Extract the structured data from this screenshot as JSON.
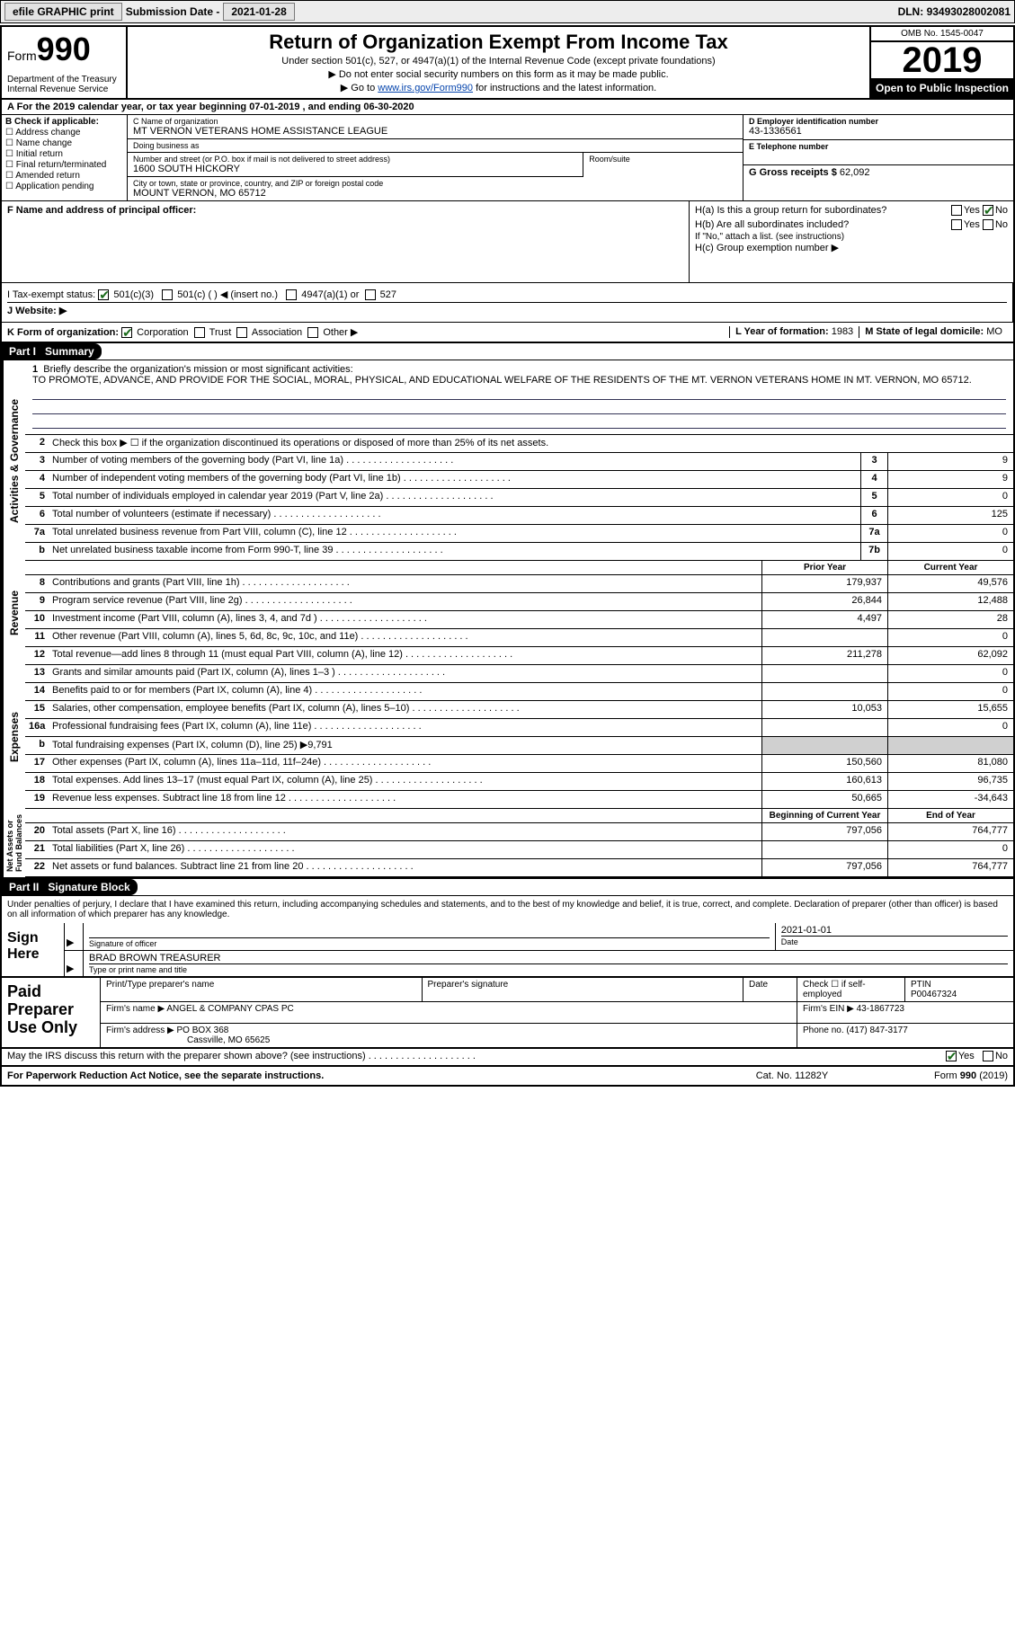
{
  "topbar": {
    "efile": "efile GRAPHIC print",
    "sub_label": "Submission Date - ",
    "sub_date": "2021-01-28",
    "dln_label": "DLN: ",
    "dln": "93493028002081"
  },
  "header": {
    "form_word": "Form",
    "form_num": "990",
    "dept": "Department of the Treasury\nInternal Revenue Service",
    "title": "Return of Organization Exempt From Income Tax",
    "sub1": "Under section 501(c), 527, or 4947(a)(1) of the Internal Revenue Code (except private foundations)",
    "sub2": "▶ Do not enter social security numbers on this form as it may be made public.",
    "sub3_pre": "▶ Go to ",
    "sub3_link": "www.irs.gov/Form990",
    "sub3_post": " for instructions and the latest information.",
    "omb": "OMB No. 1545-0047",
    "year": "2019",
    "open": "Open to Public Inspection"
  },
  "row_a": "A For the 2019 calendar year, or tax year beginning 07-01-2019   , and ending 06-30-2020",
  "box_b": {
    "label": "B Check if applicable:",
    "items": [
      "Address change",
      "Name change",
      "Initial return",
      "Final return/terminated",
      "Amended return",
      "Application pending"
    ]
  },
  "box_c": {
    "name_lbl": "C Name of organization",
    "name": "MT VERNON VETERANS HOME ASSISTANCE LEAGUE",
    "dba_lbl": "Doing business as",
    "dba": "",
    "addr_lbl": "Number and street (or P.O. box if mail is not delivered to street address)",
    "addr": "1600 SOUTH HICKORY",
    "suite_lbl": "Room/suite",
    "suite": "",
    "city_lbl": "City or town, state or province, country, and ZIP or foreign postal code",
    "city": "MOUNT VERNON, MO  65712"
  },
  "box_d": {
    "lbl": "D Employer identification number",
    "val": "43-1336561"
  },
  "box_e": {
    "lbl": "E Telephone number",
    "val": ""
  },
  "box_g": {
    "lbl": "G Gross receipts $ ",
    "val": "62,092"
  },
  "box_f": {
    "lbl": "F  Name and address of principal officer:",
    "val": ""
  },
  "box_h": {
    "a": "H(a)  Is this a group return for subordinates?",
    "a_yes": "Yes",
    "a_no": "No",
    "b": "H(b)  Are all subordinates included?",
    "b_yes": "Yes",
    "b_no": "No",
    "b_note": "If \"No,\" attach a list. (see instructions)",
    "c": "H(c)  Group exemption number ▶"
  },
  "row_i": {
    "lbl": "I  Tax-exempt status:",
    "o1": "501(c)(3)",
    "o2": "501(c) (  ) ◀ (insert no.)",
    "o3": "4947(a)(1) or",
    "o4": "527"
  },
  "row_j": {
    "lbl": "J  Website: ▶"
  },
  "row_k": {
    "lbl": "K Form of organization:",
    "o1": "Corporation",
    "o2": "Trust",
    "o3": "Association",
    "o4": "Other ▶",
    "l_lbl": "L Year of formation: ",
    "l_val": "1983",
    "m_lbl": "M State of legal domicile: ",
    "m_val": "MO"
  },
  "part1": "Part I",
  "part1_title": "Summary",
  "mission": {
    "num": "1",
    "lbl": "Briefly describe the organization's mission or most significant activities:",
    "text": "TO PROMOTE, ADVANCE, AND PROVIDE FOR THE SOCIAL, MORAL, PHYSICAL, AND EDUCATIONAL WELFARE OF THE RESIDENTS OF THE MT. VERNON VETERANS HOME IN MT. VERNON, MO 65712."
  },
  "side_labels": {
    "ag": "Activities & Governance",
    "rev": "Revenue",
    "exp": "Expenses",
    "na": "Net Assets or\nFund Balances"
  },
  "col_hdrs": {
    "py": "Prior Year",
    "cy": "Current Year",
    "bcy": "Beginning of Current Year",
    "eoy": "End of Year"
  },
  "lines_gov": [
    {
      "n": "2",
      "t": "Check this box ▶ ☐  if the organization discontinued its operations or disposed of more than 25% of its net assets."
    },
    {
      "n": "3",
      "t": "Number of voting members of the governing body (Part VI, line 1a)",
      "box": "3",
      "v": "9"
    },
    {
      "n": "4",
      "t": "Number of independent voting members of the governing body (Part VI, line 1b)",
      "box": "4",
      "v": "9"
    },
    {
      "n": "5",
      "t": "Total number of individuals employed in calendar year 2019 (Part V, line 2a)",
      "box": "5",
      "v": "0"
    },
    {
      "n": "6",
      "t": "Total number of volunteers (estimate if necessary)",
      "box": "6",
      "v": "125"
    },
    {
      "n": "7a",
      "t": "Total unrelated business revenue from Part VIII, column (C), line 12",
      "box": "7a",
      "v": "0"
    },
    {
      "n": "b",
      "t": "Net unrelated business taxable income from Form 990-T, line 39",
      "box": "7b",
      "v": "0"
    }
  ],
  "lines_rev": [
    {
      "n": "8",
      "t": "Contributions and grants (Part VIII, line 1h)",
      "py": "179,937",
      "cy": "49,576"
    },
    {
      "n": "9",
      "t": "Program service revenue (Part VIII, line 2g)",
      "py": "26,844",
      "cy": "12,488"
    },
    {
      "n": "10",
      "t": "Investment income (Part VIII, column (A), lines 3, 4, and 7d )",
      "py": "4,497",
      "cy": "28"
    },
    {
      "n": "11",
      "t": "Other revenue (Part VIII, column (A), lines 5, 6d, 8c, 9c, 10c, and 11e)",
      "py": "",
      "cy": "0"
    },
    {
      "n": "12",
      "t": "Total revenue—add lines 8 through 11 (must equal Part VIII, column (A), line 12)",
      "py": "211,278",
      "cy": "62,092"
    }
  ],
  "lines_exp": [
    {
      "n": "13",
      "t": "Grants and similar amounts paid (Part IX, column (A), lines 1–3 )",
      "py": "",
      "cy": "0"
    },
    {
      "n": "14",
      "t": "Benefits paid to or for members (Part IX, column (A), line 4)",
      "py": "",
      "cy": "0"
    },
    {
      "n": "15",
      "t": "Salaries, other compensation, employee benefits (Part IX, column (A), lines 5–10)",
      "py": "10,053",
      "cy": "15,655"
    },
    {
      "n": "16a",
      "t": "Professional fundraising fees (Part IX, column (A), line 11e)",
      "py": "",
      "cy": "0"
    },
    {
      "n": "b",
      "t": "Total fundraising expenses (Part IX, column (D), line 25) ▶9,791",
      "shade": true
    },
    {
      "n": "17",
      "t": "Other expenses (Part IX, column (A), lines 11a–11d, 11f–24e)",
      "py": "150,560",
      "cy": "81,080"
    },
    {
      "n": "18",
      "t": "Total expenses. Add lines 13–17 (must equal Part IX, column (A), line 25)",
      "py": "160,613",
      "cy": "96,735"
    },
    {
      "n": "19",
      "t": "Revenue less expenses. Subtract line 18 from line 12",
      "py": "50,665",
      "cy": "-34,643"
    }
  ],
  "lines_na": [
    {
      "n": "20",
      "t": "Total assets (Part X, line 16)",
      "py": "797,056",
      "cy": "764,777"
    },
    {
      "n": "21",
      "t": "Total liabilities (Part X, line 26)",
      "py": "",
      "cy": "0"
    },
    {
      "n": "22",
      "t": "Net assets or fund balances. Subtract line 21 from line 20",
      "py": "797,056",
      "cy": "764,777"
    }
  ],
  "part2": "Part II",
  "part2_title": "Signature Block",
  "sig_decl": "Under penalties of perjury, I declare that I have examined this return, including accompanying schedules and statements, and to the best of my knowledge and belief, it is true, correct, and complete. Declaration of preparer (other than officer) is based on all information of which preparer has any knowledge.",
  "sign_here": "Sign Here",
  "sig": {
    "sig_lbl": "Signature of officer",
    "date_lbl": "Date",
    "date": "2021-01-01",
    "name": "BRAD BROWN  TREASURER",
    "name_lbl": "Type or print name and title"
  },
  "paid": {
    "title": "Paid Preparer Use Only",
    "h1": "Print/Type preparer's name",
    "h2": "Preparer's signature",
    "h3": "Date",
    "h4_a": "Check ☐ if self-employed",
    "h4_b": "PTIN",
    "ptin": "P00467324",
    "firm_lbl": "Firm's name    ▶ ",
    "firm": "ANGEL & COMPANY CPAS PC",
    "ein_lbl": "Firm's EIN ▶ ",
    "ein": "43-1867723",
    "addr_lbl": "Firm's address ▶ ",
    "addr1": "PO BOX 368",
    "addr2": "Cassville, MO  65625",
    "phone_lbl": "Phone no. ",
    "phone": "(417) 847-3177"
  },
  "discuss": {
    "q": "May the IRS discuss this return with the preparer shown above? (see instructions)",
    "yes": "Yes",
    "no": "No"
  },
  "footer": {
    "left": "For Paperwork Reduction Act Notice, see the separate instructions.",
    "mid": "Cat. No. 11282Y",
    "right": "Form 990 (2019)"
  }
}
